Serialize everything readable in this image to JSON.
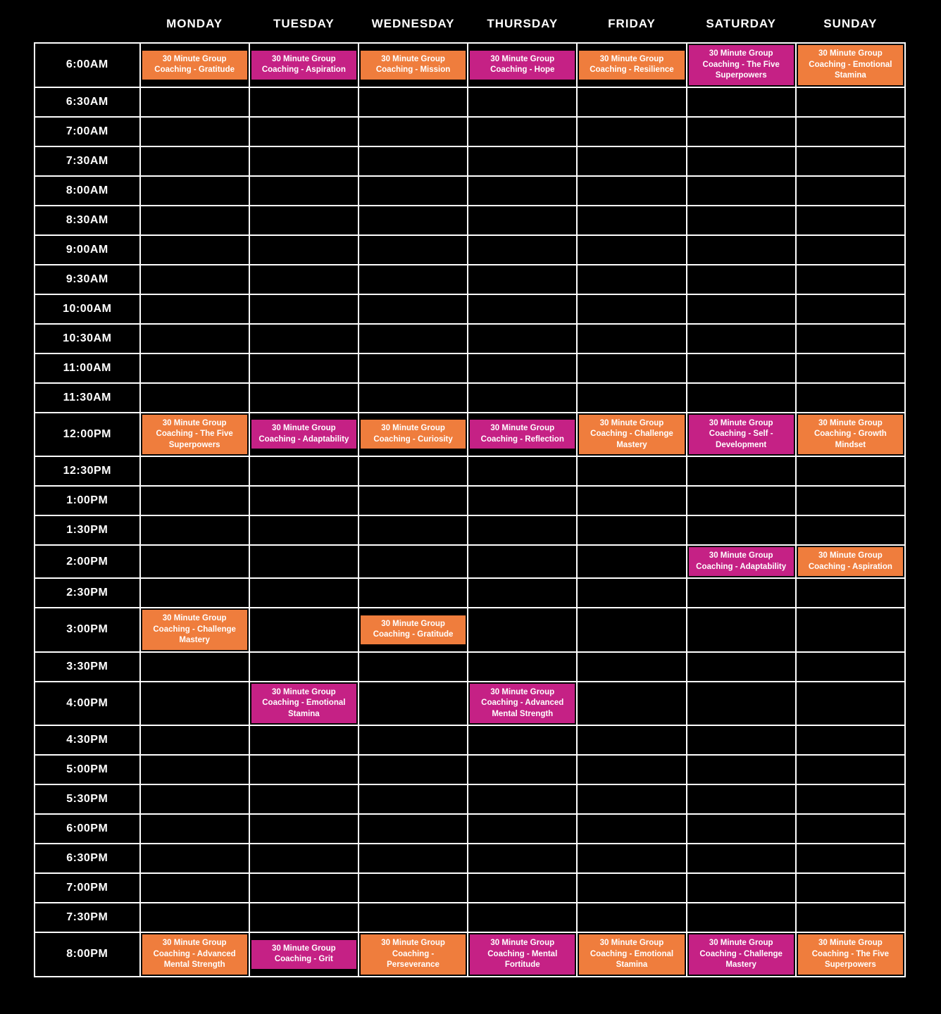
{
  "schedule": {
    "days": [
      "MONDAY",
      "TUESDAY",
      "WEDNESDAY",
      "THURSDAY",
      "FRIDAY",
      "SATURDAY",
      "SUNDAY"
    ],
    "times": [
      "6:00AM",
      "6:30AM",
      "7:00AM",
      "7:30AM",
      "8:00AM",
      "8:30AM",
      "9:00AM",
      "9:30AM",
      "10:00AM",
      "10:30AM",
      "11:00AM",
      "11:30AM",
      "12:00PM",
      "12:30PM",
      "1:00PM",
      "1:30PM",
      "2:00PM",
      "2:30PM",
      "3:00PM",
      "3:30PM",
      "4:00PM",
      "4:30PM",
      "5:00PM",
      "5:30PM",
      "6:00PM",
      "6:30PM",
      "7:00PM",
      "7:30PM",
      "8:00PM"
    ],
    "colors": {
      "orange": "#EF7D3D",
      "magenta": "#C52185"
    },
    "events": [
      {
        "time": "6:00AM",
        "day": "MONDAY",
        "color": "orange",
        "title": "30 Minute Group Coaching - Gratitude"
      },
      {
        "time": "6:00AM",
        "day": "TUESDAY",
        "color": "magenta",
        "title": "30 Minute Group Coaching - Aspiration"
      },
      {
        "time": "6:00AM",
        "day": "WEDNESDAY",
        "color": "orange",
        "title": "30 Minute Group Coaching - Mission"
      },
      {
        "time": "6:00AM",
        "day": "THURSDAY",
        "color": "magenta",
        "title": "30 Minute Group Coaching - Hope"
      },
      {
        "time": "6:00AM",
        "day": "FRIDAY",
        "color": "orange",
        "title": "30 Minute Group Coaching - Resilience"
      },
      {
        "time": "6:00AM",
        "day": "SATURDAY",
        "color": "magenta",
        "title": "30 Minute Group Coaching - The Five Superpowers"
      },
      {
        "time": "6:00AM",
        "day": "SUNDAY",
        "color": "orange",
        "title": "30 Minute Group Coaching - Emotional Stamina"
      },
      {
        "time": "12:00PM",
        "day": "MONDAY",
        "color": "orange",
        "title": "30 Minute Group Coaching - The Five Superpowers"
      },
      {
        "time": "12:00PM",
        "day": "TUESDAY",
        "color": "magenta",
        "title": "30 Minute Group Coaching - Adaptability"
      },
      {
        "time": "12:00PM",
        "day": "WEDNESDAY",
        "color": "orange",
        "title": "30 Minute Group Coaching - Curiosity"
      },
      {
        "time": "12:00PM",
        "day": "THURSDAY",
        "color": "magenta",
        "title": "30 Minute Group Coaching - Reflection"
      },
      {
        "time": "12:00PM",
        "day": "FRIDAY",
        "color": "orange",
        "title": "30 Minute Group Coaching - Challenge Mastery"
      },
      {
        "time": "12:00PM",
        "day": "SATURDAY",
        "color": "magenta",
        "title": "30 Minute Group Coaching - Self - Development"
      },
      {
        "time": "12:00PM",
        "day": "SUNDAY",
        "color": "orange",
        "title": "30 Minute Group Coaching - Growth Mindset"
      },
      {
        "time": "2:00PM",
        "day": "SATURDAY",
        "color": "magenta",
        "title": "30 Minute Group Coaching - Adaptability"
      },
      {
        "time": "2:00PM",
        "day": "SUNDAY",
        "color": "orange",
        "title": "30 Minute Group Coaching - Aspiration"
      },
      {
        "time": "3:00PM",
        "day": "MONDAY",
        "color": "orange",
        "title": "30 Minute Group Coaching - Challenge Mastery"
      },
      {
        "time": "3:00PM",
        "day": "WEDNESDAY",
        "color": "orange",
        "title": "30 Minute Group Coaching - Gratitude"
      },
      {
        "time": "4:00PM",
        "day": "TUESDAY",
        "color": "magenta",
        "title": "30 Minute Group Coaching - Emotional Stamina"
      },
      {
        "time": "4:00PM",
        "day": "THURSDAY",
        "color": "magenta",
        "title": "30 Minute Group Coaching - Advanced Mental Strength"
      },
      {
        "time": "8:00PM",
        "day": "MONDAY",
        "color": "orange",
        "title": "30 Minute Group Coaching - Advanced Mental Strength"
      },
      {
        "time": "8:00PM",
        "day": "TUESDAY",
        "color": "magenta",
        "title": "30 Minute Group Coaching - Grit"
      },
      {
        "time": "8:00PM",
        "day": "WEDNESDAY",
        "color": "orange",
        "title": "30 Minute Group Coaching - Perseverance"
      },
      {
        "time": "8:00PM",
        "day": "THURSDAY",
        "color": "magenta",
        "title": "30 Minute Group Coaching - Mental Fortitude"
      },
      {
        "time": "8:00PM",
        "day": "FRIDAY",
        "color": "orange",
        "title": "30 Minute Group Coaching - Emotional Stamina"
      },
      {
        "time": "8:00PM",
        "day": "SATURDAY",
        "color": "magenta",
        "title": "30 Minute Group Coaching - Challenge Mastery"
      },
      {
        "time": "8:00PM",
        "day": "SUNDAY",
        "color": "orange",
        "title": "30 Minute Group Coaching - The Five Superpowers"
      }
    ]
  }
}
